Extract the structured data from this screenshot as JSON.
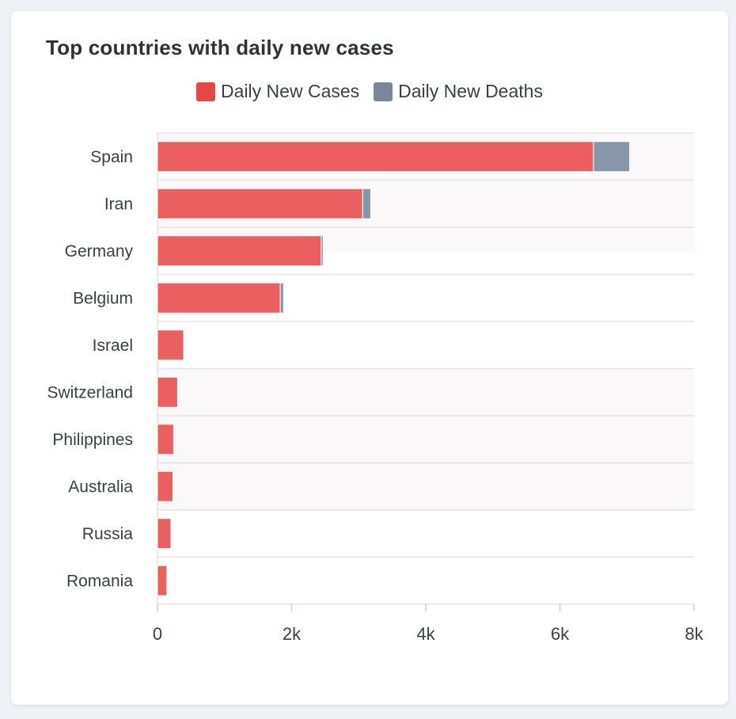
{
  "card": {
    "title": "Top countries with daily new cases"
  },
  "colors": {
    "cases": "#eb5f61",
    "deaths": "#8896aa",
    "cases_legend": "#e84545",
    "deaths_legend": "#7a879a",
    "band": "#faf8f9",
    "grid": "#e4e4e4",
    "tick_label": "#3b3f44"
  },
  "chart_data": {
    "type": "bar",
    "orientation": "horizontal",
    "stacked": true,
    "title": "Top countries with daily new cases",
    "legend": [
      "Daily New Cases",
      "Daily New Deaths"
    ],
    "legend_position": "top-center",
    "categories": [
      "Spain",
      "Iran",
      "Germany",
      "Belgium",
      "Israel",
      "Switzerland",
      "Philippines",
      "Australia",
      "Russia",
      "Romania"
    ],
    "series": [
      {
        "name": "Daily New Cases",
        "values": [
          6500,
          3060,
          2440,
          1830,
          390,
          300,
          240,
          230,
          200,
          140
        ]
      },
      {
        "name": "Daily New Deaths",
        "values": [
          540,
          120,
          30,
          50,
          0,
          0,
          0,
          0,
          0,
          0
        ]
      }
    ],
    "xlim": [
      0,
      8000
    ],
    "xticks": [
      0,
      2000,
      4000,
      6000,
      8000
    ],
    "xtick_labels": [
      "0",
      "2k",
      "4k",
      "6k",
      "8k"
    ],
    "grid": true
  }
}
